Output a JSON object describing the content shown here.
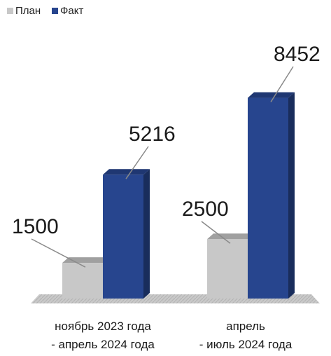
{
  "chart_data": {
    "type": "bar",
    "categories": [
      [
        "ноябрь 2023 года",
        "- апрель 2024 года"
      ],
      [
        "апрель",
        "- июль 2024 года"
      ]
    ],
    "series": [
      {
        "name": "План",
        "values": [
          1500,
          2500
        ],
        "color": "#c8c8c8"
      },
      {
        "name": "Факт",
        "values": [
          5216,
          8452
        ],
        "color": "#27458e"
      }
    ],
    "data_labels": [
      [
        "1500",
        "2500"
      ],
      [
        "5216",
        "8452"
      ]
    ],
    "ylim": [
      0,
      9000
    ],
    "grid": false,
    "legend_position": "top-left",
    "style": "3d-column"
  }
}
